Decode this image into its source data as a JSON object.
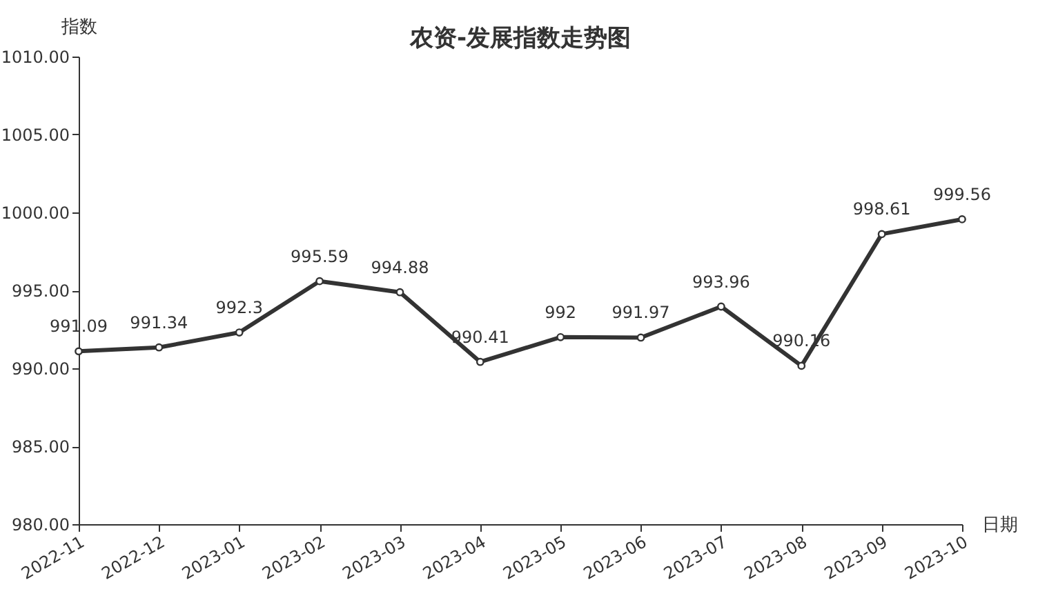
{
  "chart_data": {
    "type": "line",
    "title": "农资-发展指数走势图",
    "xlabel": "日期",
    "ylabel": "指数",
    "categories": [
      "2022-11",
      "2022-12",
      "2023-01",
      "2023-02",
      "2023-03",
      "2023-04",
      "2023-05",
      "2023-06",
      "2023-07",
      "2023-08",
      "2023-09",
      "2023-10"
    ],
    "series": [
      {
        "color": "#333333",
        "values": [
          991.09,
          991.34,
          992.3,
          995.59,
          994.88,
          990.41,
          992,
          991.97,
          993.96,
          990.16,
          998.61,
          999.56
        ]
      }
    ],
    "ylim": [
      980,
      1010
    ],
    "yticks": [
      {
        "value": 980,
        "label": "980.00"
      },
      {
        "value": 985,
        "label": "985.00"
      },
      {
        "value": 990,
        "label": "990.00"
      },
      {
        "value": 995,
        "label": "995.00"
      },
      {
        "value": 1000,
        "label": "1000.00"
      },
      {
        "value": 1005,
        "label": "1005.00"
      },
      {
        "value": 1010,
        "label": "1010.00"
      }
    ],
    "grid": false,
    "marker": "circle",
    "line_style": "solid",
    "data_labels": true
  }
}
